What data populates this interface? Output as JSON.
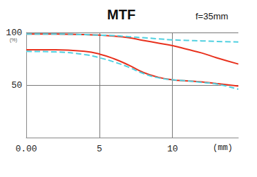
{
  "chart_data": {
    "type": "line",
    "title": "MTF",
    "subtitle": "f=35mm",
    "x_label": "(mm)",
    "y_label": "(%)",
    "x": [
      0,
      2,
      4,
      5,
      6,
      7,
      8,
      9,
      10,
      11,
      12,
      13,
      14.5
    ],
    "series": [
      {
        "color": "#e8301c",
        "line_style": "solid",
        "values": [
          98.5,
          98.5,
          98,
          97.5,
          96.5,
          95,
          92.5,
          90,
          87.5,
          84,
          80.5,
          76,
          70
        ]
      },
      {
        "color": "#4fd0e0",
        "line_style": "dashed",
        "values": [
          98.5,
          98.5,
          98,
          97.5,
          97,
          96,
          95,
          94,
          93,
          92.5,
          92,
          91.5,
          91
        ]
      },
      {
        "color": "#e8301c",
        "line_style": "solid",
        "values": [
          83.5,
          83.5,
          82,
          79.5,
          75,
          69,
          62,
          57.5,
          55,
          54,
          53,
          51.5,
          49
        ]
      },
      {
        "color": "#4fd0e0",
        "line_style": "dashed",
        "values": [
          82,
          81.5,
          79,
          76,
          72,
          67,
          61,
          57,
          55,
          54,
          52.5,
          51,
          46
        ]
      }
    ],
    "xlim": [
      0,
      14.5
    ],
    "xticks": [
      {
        "value": 0,
        "label": "0.00"
      },
      5,
      10
    ],
    "ylim": [
      0,
      100
    ],
    "yticks": [
      50,
      100
    ],
    "grid": true
  }
}
